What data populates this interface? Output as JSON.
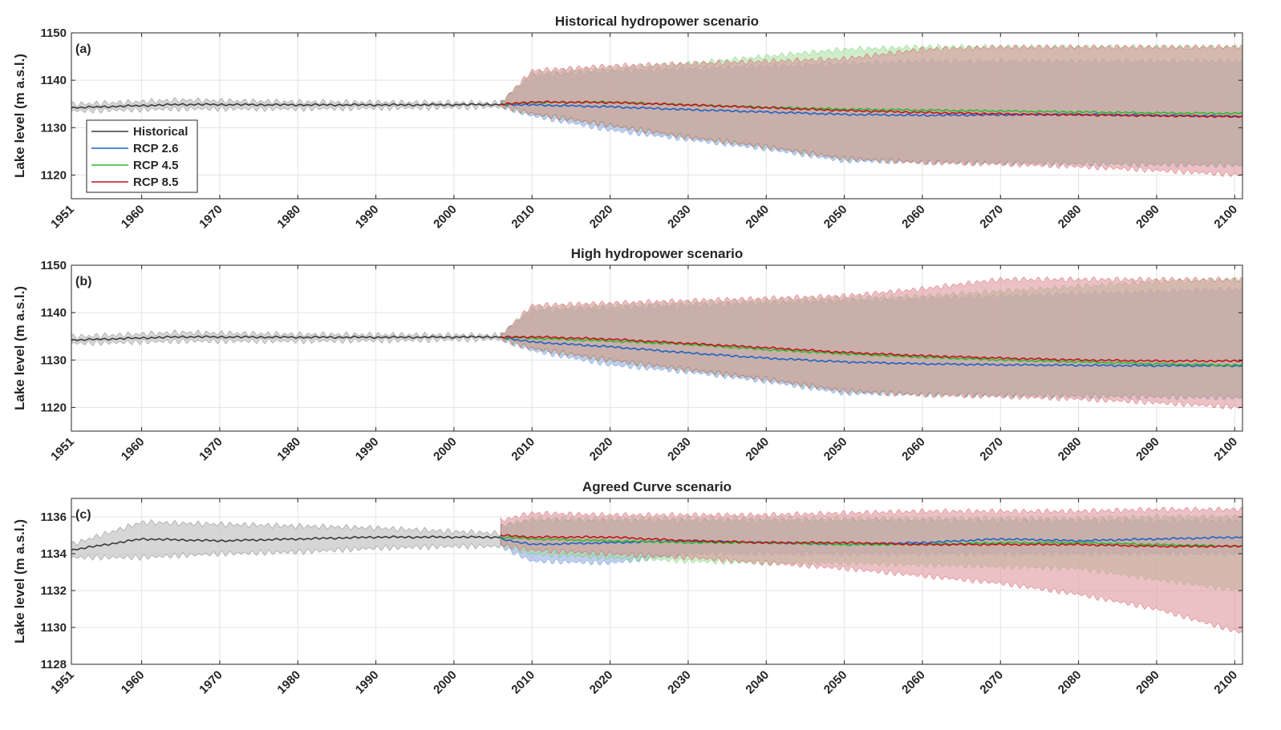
{
  "colors": {
    "historical": "#3a3a3a",
    "rcp26": "#1f63c6",
    "rcp45": "#2fb82f",
    "rcp85": "#c0141c",
    "band_historical": "#c8c8c8",
    "band_rcp26": "#a9bde6",
    "band_rcp45": "#a8df9f",
    "band_rcp85": "#dc8e98",
    "grid": "#e3e3e3",
    "axis": "#262626"
  },
  "legend": {
    "items": [
      {
        "label": "Historical",
        "key": "historical"
      },
      {
        "label": "RCP 2.6",
        "key": "rcp26"
      },
      {
        "label": "RCP 4.5",
        "key": "rcp45"
      },
      {
        "label": "RCP 8.5",
        "key": "rcp85"
      }
    ]
  },
  "chart_data": [
    {
      "type": "area",
      "panel_label": "(a)",
      "title": "Historical hydropower scenario",
      "ylabel": "Lake level (m a.s.l.)",
      "xlim": [
        1951,
        2101
      ],
      "ylim": [
        1115,
        1150
      ],
      "xticks": [
        1951,
        1960,
        1970,
        1980,
        1990,
        2000,
        2010,
        2020,
        2030,
        2040,
        2050,
        2060,
        2070,
        2080,
        2090,
        2100
      ],
      "yticks": [
        1120,
        1130,
        1140,
        1150
      ],
      "grid": true,
      "legend_position": "left",
      "series": [
        {
          "name": "Historical",
          "key": "historical",
          "x": [
            1951,
            1965,
            1980,
            1995,
            2006
          ],
          "mean": [
            1134.2,
            1134.9,
            1134.8,
            1134.8,
            1134.9
          ],
          "lower": [
            1133.5,
            1134.0,
            1134.0,
            1134.2,
            1134.4
          ],
          "upper": [
            1134.9,
            1135.8,
            1135.4,
            1135.3,
            1135.2
          ]
        },
        {
          "name": "RCP 2.6",
          "key": "rcp26",
          "x": [
            2006,
            2010,
            2020,
            2030,
            2040,
            2050,
            2060,
            2070,
            2080,
            2090,
            2101
          ],
          "mean": [
            1134.9,
            1134.8,
            1134.4,
            1133.8,
            1133.3,
            1132.8,
            1132.6,
            1132.7,
            1132.8,
            1132.6,
            1132.4
          ],
          "lower": [
            1134.5,
            1132.5,
            1129.5,
            1127.5,
            1125.5,
            1123.0,
            1122.8,
            1122.6,
            1122.4,
            1122.2,
            1122.0
          ],
          "upper": [
            1135.2,
            1141.0,
            1142.0,
            1142.5,
            1143.0,
            1143.5,
            1144.0,
            1144.0,
            1144.0,
            1144.0,
            1144.0
          ]
        },
        {
          "name": "RCP 4.5",
          "key": "rcp45",
          "x": [
            2006,
            2010,
            2020,
            2030,
            2040,
            2050,
            2060,
            2070,
            2080,
            2090,
            2101
          ],
          "mean": [
            1134.9,
            1135.3,
            1135.4,
            1134.8,
            1134.3,
            1133.9,
            1133.7,
            1133.5,
            1133.3,
            1133.1,
            1133.0
          ],
          "lower": [
            1134.5,
            1133.0,
            1130.5,
            1128.0,
            1126.0,
            1123.5,
            1122.8,
            1122.6,
            1122.4,
            1122.3,
            1122.2
          ],
          "upper": [
            1135.2,
            1141.5,
            1142.5,
            1143.5,
            1145.0,
            1146.5,
            1147.0,
            1147.0,
            1147.0,
            1147.0,
            1147.0
          ]
        },
        {
          "name": "RCP 8.5",
          "key": "rcp85",
          "x": [
            2006,
            2010,
            2020,
            2030,
            2040,
            2050,
            2060,
            2070,
            2080,
            2090,
            2101
          ],
          "mean": [
            1134.9,
            1135.4,
            1135.3,
            1134.8,
            1134.2,
            1133.6,
            1133.2,
            1132.9,
            1132.7,
            1132.5,
            1132.3
          ],
          "lower": [
            1134.5,
            1133.0,
            1130.5,
            1128.0,
            1126.0,
            1123.5,
            1122.6,
            1122.3,
            1121.8,
            1121.0,
            1120.0
          ],
          "upper": [
            1135.2,
            1142.0,
            1143.0,
            1143.5,
            1144.0,
            1144.5,
            1146.5,
            1147.0,
            1147.0,
            1147.0,
            1147.0
          ]
        }
      ]
    },
    {
      "type": "area",
      "panel_label": "(b)",
      "title": "High hydropower scenario",
      "ylabel": "Lake level (m a.s.l.)",
      "xlim": [
        1951,
        2101
      ],
      "ylim": [
        1115,
        1150
      ],
      "xticks": [
        1951,
        1960,
        1970,
        1980,
        1990,
        2000,
        2010,
        2020,
        2030,
        2040,
        2050,
        2060,
        2070,
        2080,
        2090,
        2100
      ],
      "yticks": [
        1120,
        1130,
        1140,
        1150
      ],
      "grid": true,
      "series": [
        {
          "name": "Historical",
          "key": "historical",
          "x": [
            1951,
            1965,
            1980,
            1995,
            2006
          ],
          "mean": [
            1134.2,
            1134.9,
            1134.8,
            1134.8,
            1134.9
          ],
          "lower": [
            1133.5,
            1134.0,
            1134.0,
            1134.2,
            1134.4
          ],
          "upper": [
            1134.9,
            1135.8,
            1135.4,
            1135.3,
            1135.2
          ]
        },
        {
          "name": "RCP 2.6",
          "key": "rcp26",
          "x": [
            2006,
            2010,
            2020,
            2030,
            2040,
            2050,
            2060,
            2070,
            2080,
            2090,
            2101
          ],
          "mean": [
            1134.8,
            1133.8,
            1132.8,
            1131.5,
            1130.4,
            1129.6,
            1129.2,
            1129.0,
            1128.9,
            1128.8,
            1128.8
          ],
          "lower": [
            1134.4,
            1132.0,
            1129.0,
            1127.5,
            1125.5,
            1123.0,
            1122.8,
            1122.6,
            1122.4,
            1122.2,
            1122.0
          ],
          "upper": [
            1135.2,
            1140.5,
            1141.0,
            1141.5,
            1142.0,
            1142.5,
            1143.0,
            1143.5,
            1144.0,
            1144.5,
            1145.0
          ]
        },
        {
          "name": "RCP 4.5",
          "key": "rcp45",
          "x": [
            2006,
            2010,
            2020,
            2030,
            2040,
            2050,
            2060,
            2070,
            2080,
            2090,
            2101
          ],
          "mean": [
            1134.8,
            1134.6,
            1134.0,
            1133.3,
            1132.2,
            1131.3,
            1130.6,
            1130.0,
            1129.6,
            1129.2,
            1128.9
          ],
          "lower": [
            1134.4,
            1132.5,
            1130.0,
            1128.0,
            1126.0,
            1123.5,
            1122.8,
            1122.6,
            1122.4,
            1122.3,
            1122.2
          ],
          "upper": [
            1135.2,
            1141.0,
            1141.5,
            1142.0,
            1142.5,
            1143.0,
            1143.5,
            1144.5,
            1145.5,
            1146.5,
            1147.0
          ]
        },
        {
          "name": "RCP 8.5",
          "key": "rcp85",
          "x": [
            2006,
            2010,
            2020,
            2030,
            2040,
            2050,
            2060,
            2070,
            2080,
            2090,
            2101
          ],
          "mean": [
            1134.8,
            1134.9,
            1134.4,
            1133.5,
            1132.6,
            1131.6,
            1130.9,
            1130.4,
            1130.0,
            1129.8,
            1129.8
          ],
          "lower": [
            1134.4,
            1132.5,
            1130.0,
            1128.0,
            1126.0,
            1123.5,
            1122.6,
            1122.3,
            1121.8,
            1121.0,
            1120.0
          ],
          "upper": [
            1135.2,
            1141.5,
            1142.0,
            1142.5,
            1143.0,
            1143.5,
            1145.0,
            1147.0,
            1147.0,
            1147.0,
            1147.0
          ]
        }
      ]
    },
    {
      "type": "area",
      "panel_label": "(c)",
      "title": "Agreed Curve scenario",
      "ylabel": "Lake level (m a.s.l.)",
      "xlim": [
        1951,
        2101
      ],
      "ylim": [
        1128,
        1137
      ],
      "xticks": [
        1951,
        1960,
        1970,
        1980,
        1990,
        2000,
        2010,
        2020,
        2030,
        2040,
        2050,
        2060,
        2070,
        2080,
        2090,
        2100
      ],
      "yticks": [
        1128,
        1130,
        1132,
        1134,
        1136
      ],
      "grid": true,
      "series": [
        {
          "name": "Historical",
          "key": "historical",
          "x": [
            1951,
            1960,
            1970,
            1980,
            1990,
            2000,
            2006
          ],
          "mean": [
            1134.2,
            1134.8,
            1134.7,
            1134.8,
            1134.9,
            1134.9,
            1134.9
          ],
          "lower": [
            1133.8,
            1133.8,
            1134.0,
            1134.1,
            1134.3,
            1134.4,
            1134.4
          ],
          "upper": [
            1134.5,
            1135.7,
            1135.6,
            1135.5,
            1135.4,
            1135.2,
            1135.1
          ]
        },
        {
          "name": "RCP 2.6",
          "key": "rcp26",
          "x": [
            2006,
            2010,
            2020,
            2030,
            2040,
            2050,
            2060,
            2070,
            2080,
            2090,
            2101
          ],
          "mean": [
            1134.8,
            1134.5,
            1134.6,
            1134.7,
            1134.6,
            1134.5,
            1134.6,
            1134.8,
            1134.7,
            1134.8,
            1134.9
          ],
          "lower": [
            1134.4,
            1133.6,
            1133.5,
            1134.0,
            1134.0,
            1134.0,
            1134.0,
            1134.0,
            1134.0,
            1134.0,
            1134.0
          ],
          "upper": [
            1135.5,
            1135.8,
            1135.8,
            1135.8,
            1135.8,
            1135.8,
            1135.8,
            1135.8,
            1135.8,
            1135.8,
            1135.8
          ]
        },
        {
          "name": "RCP 4.5",
          "key": "rcp45",
          "x": [
            2006,
            2010,
            2020,
            2030,
            2040,
            2050,
            2060,
            2070,
            2080,
            2090,
            2101
          ],
          "mean": [
            1134.9,
            1134.8,
            1134.7,
            1134.6,
            1134.6,
            1134.5,
            1134.5,
            1134.6,
            1134.6,
            1134.5,
            1134.4
          ],
          "lower": [
            1134.5,
            1134.0,
            1133.8,
            1133.6,
            1133.5,
            1133.5,
            1133.4,
            1133.3,
            1133.2,
            1132.6,
            1132.0
          ],
          "upper": [
            1135.5,
            1135.9,
            1135.9,
            1135.9,
            1135.9,
            1135.9,
            1135.9,
            1135.9,
            1135.9,
            1136.0,
            1136.0
          ]
        },
        {
          "name": "RCP 8.5",
          "key": "rcp85",
          "x": [
            2006,
            2010,
            2020,
            2030,
            2040,
            2050,
            2060,
            2070,
            2080,
            2090,
            2101
          ],
          "mean": [
            1135.0,
            1134.9,
            1134.9,
            1134.7,
            1134.6,
            1134.6,
            1134.5,
            1134.5,
            1134.5,
            1134.4,
            1134.4
          ],
          "lower": [
            1134.5,
            1134.2,
            1134.0,
            1133.8,
            1133.5,
            1133.2,
            1132.8,
            1132.4,
            1131.8,
            1131.0,
            1129.7
          ],
          "upper": [
            1135.8,
            1136.2,
            1136.1,
            1136.1,
            1136.1,
            1136.2,
            1136.3,
            1136.3,
            1136.3,
            1136.4,
            1136.4
          ]
        }
      ]
    }
  ]
}
